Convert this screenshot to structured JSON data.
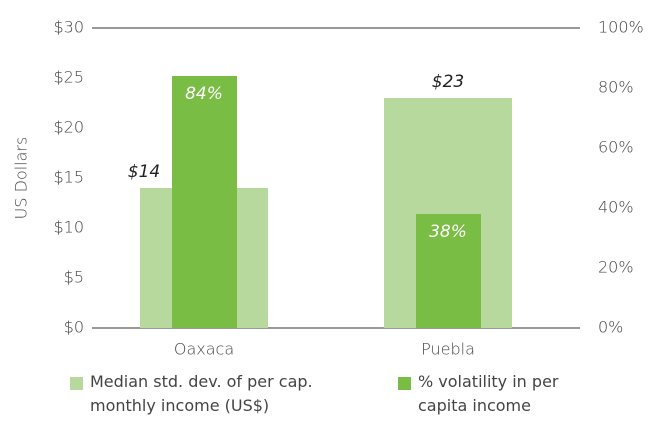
{
  "chart_data": {
    "type": "bar",
    "y_label": "US  Dollars",
    "categories": [
      "Oaxaca",
      "Puebla"
    ],
    "series": [
      {
        "name": "Median std. dev. of per cap. monthly income (US$)",
        "color": "#b7d99e",
        "values": [
          14,
          23
        ],
        "value_labels": [
          "$14",
          "$23"
        ]
      },
      {
        "name": "% volatility in per capita income",
        "color": "#79bd45",
        "axis": "y2",
        "values": [
          84,
          38
        ],
        "value_labels": [
          "84%",
          "38%"
        ]
      }
    ],
    "ylim": [
      0,
      30
    ],
    "yticks": [
      {
        "value": 0,
        "label": "$0"
      },
      {
        "value": 5,
        "label": "$5"
      },
      {
        "value": 10,
        "label": "$10"
      },
      {
        "value": 15,
        "label": "$15"
      },
      {
        "value": 20,
        "label": "$20"
      },
      {
        "value": 25,
        "label": "$25"
      },
      {
        "value": 30,
        "label": "$30"
      }
    ],
    "y2lim": [
      0,
      100
    ],
    "y2ticks": [
      {
        "value": 0,
        "label": "0%"
      },
      {
        "value": 20,
        "label": "20%"
      },
      {
        "value": 40,
        "label": "40%"
      },
      {
        "value": 60,
        "label": "60%"
      },
      {
        "value": 80,
        "label": "80%"
      },
      {
        "value": 100,
        "label": "100%"
      }
    ],
    "legend": "bottom"
  }
}
